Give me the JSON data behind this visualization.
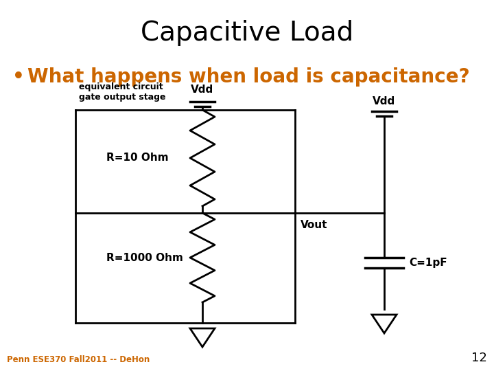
{
  "title": "Capacitive Load",
  "bullet": "What happens when load is capacitance?",
  "bullet_color": "#CC6600",
  "title_fontsize": 28,
  "bullet_fontsize": 20,
  "bg_color": "#ffffff",
  "footer": "Penn ESE370 Fall2011 -- DeHon",
  "slide_number": "12",
  "label_equiv": "equivalent circuit\ngate output stage",
  "label_r10": "R=10 Ohm",
  "label_r1000": "R=1000 Ohm",
  "label_vdd_left": "Vdd",
  "label_vdd_right": "Vdd",
  "label_vout": "Vout",
  "label_cap": "C=1pF"
}
